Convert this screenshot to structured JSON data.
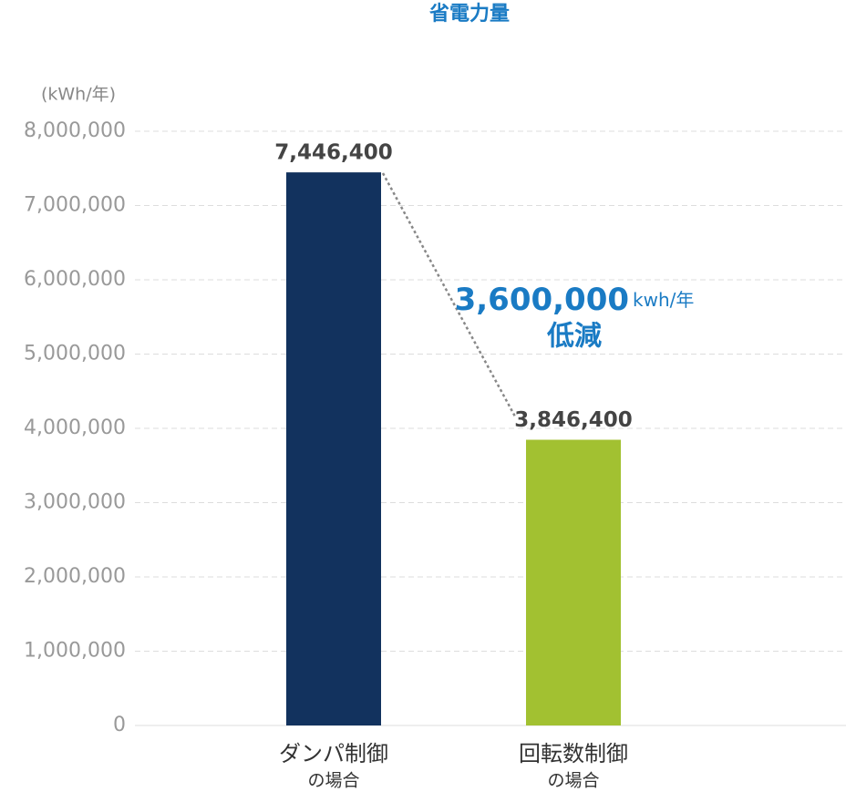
{
  "chart_data": {
    "type": "bar",
    "title": "省電力量",
    "y_unit": "(kWh/年)",
    "categories": [
      [
        "ダンパ制御",
        "の場合"
      ],
      [
        "回転数制御",
        "の場合"
      ]
    ],
    "values": [
      7446400,
      3846400
    ],
    "value_labels": [
      "7,446,400",
      "3,846,400"
    ],
    "colors": [
      "#12325e",
      "#a2c131"
    ],
    "ylim": [
      0,
      8000000
    ],
    "yticks": [
      0,
      {
        "value": 1000000,
        "label": "1,000,000"
      },
      {
        "value": 2000000,
        "label": "2,000,000"
      },
      {
        "value": 3000000,
        "label": "3,000,000"
      },
      {
        "value": 4000000,
        "label": "4,000,000"
      },
      {
        "value": 5000000,
        "label": "5,000,000"
      },
      {
        "value": 6000000,
        "label": "6,000,000"
      },
      {
        "value": 7000000,
        "label": "7,000,000"
      },
      {
        "value": 8000000,
        "label": "8,000,000"
      }
    ],
    "grid": true,
    "annotation": {
      "amount": "3,600,000",
      "unit": "kwh/年",
      "text": "低減"
    }
  }
}
